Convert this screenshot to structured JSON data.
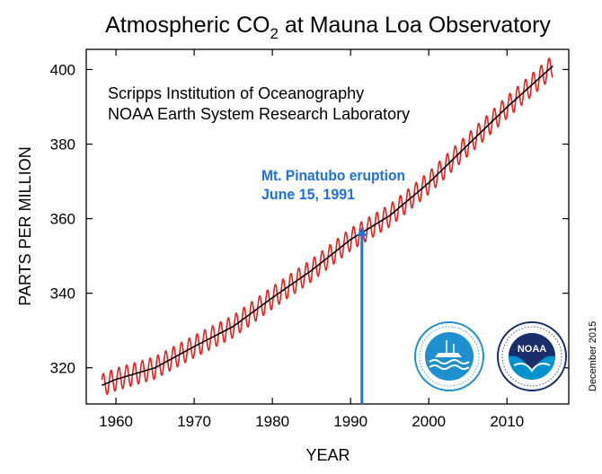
{
  "chart_data": {
    "type": "line",
    "title": "Atmospheric CO",
    "title_subscript": "2",
    "title_suffix": " at Mauna Loa Observatory",
    "xlabel": "YEAR",
    "ylabel": "PARTS PER MILLION",
    "xlim": [
      1956.2,
      2017.9
    ],
    "ylim": [
      310.3,
      405.4
    ],
    "x_ticks": [
      1960,
      1970,
      1980,
      1990,
      2000,
      2010
    ],
    "y_ticks": [
      320,
      340,
      360,
      380,
      400
    ],
    "credit_lines": [
      "Scripps Institution of Oceanography",
      "NOAA Earth System Research Laboratory"
    ],
    "annotation": {
      "lines": [
        "Mt. Pinatubo eruption",
        "June 15, 1991"
      ],
      "x": 1991.45,
      "arrow_top_ppm": 357.8,
      "color": "#1f6fe0"
    },
    "date_label": "December 2015",
    "logo_lettering": {
      "scripps": "SCRIPPS INSTITUTION OF OCEANOGRAPHY · UCSD",
      "noaa": "NATIONAL OCEANIC AND ATMOSPHERIC ADMINISTRATION · U.S. DEPARTMENT OF COMMERCE"
    },
    "grid": false,
    "series": [
      {
        "color": "#e8201c",
        "style": "monthly-seasonal",
        "seasonal_amplitude": 3.0,
        "x": [
          1958.2,
          1960,
          1965,
          1970,
          1975,
          1980,
          1985,
          1990,
          1995,
          2000,
          2005,
          2010,
          2015.9
        ],
        "values": [
          315.3,
          316.9,
          320.0,
          325.7,
          331.1,
          338.8,
          346.1,
          354.4,
          360.8,
          369.6,
          379.8,
          389.9,
          401.0
        ]
      },
      {
        "color": "#000000",
        "style": "trend",
        "x": [
          1958.2,
          1960,
          1965,
          1970,
          1975,
          1980,
          1985,
          1990,
          1995,
          2000,
          2005,
          2010,
          2015.9
        ],
        "values": [
          315.3,
          316.9,
          320.0,
          325.7,
          331.1,
          338.8,
          346.1,
          354.4,
          360.8,
          369.6,
          379.8,
          389.9,
          401.0
        ]
      }
    ]
  }
}
